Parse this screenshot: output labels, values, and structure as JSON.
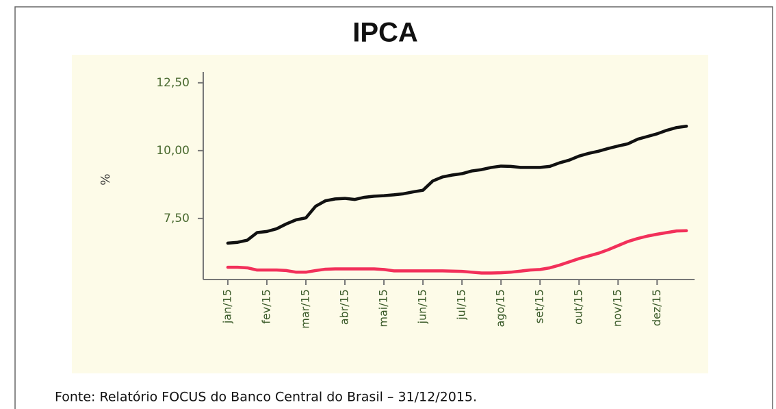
{
  "chart_data": {
    "type": "line",
    "title": "IPCA",
    "ylabel": "%",
    "source": "Fonte: Relatório FOCUS do Banco Central do Brasil – 31/12/2015.",
    "x": [
      0,
      0.25,
      0.5,
      0.75,
      1,
      1.25,
      1.5,
      1.75,
      2,
      2.25,
      2.5,
      2.75,
      3,
      3.25,
      3.5,
      3.75,
      4,
      4.25,
      4.5,
      4.75,
      5,
      5.25,
      5.5,
      5.75,
      6,
      6.25,
      6.5,
      6.75,
      7,
      7.25,
      7.5,
      7.75,
      8,
      8.25,
      8.5,
      8.75,
      9,
      9.25,
      9.5,
      9.75,
      10,
      10.25,
      10.5,
      10.75,
      11,
      11.25,
      11.5,
      11.75
    ],
    "series": [
      {
        "name": "black",
        "color": "#111111",
        "values": [
          6.59,
          6.62,
          6.7,
          6.98,
          7.02,
          7.12,
          7.3,
          7.45,
          7.52,
          7.95,
          8.15,
          8.22,
          8.24,
          8.2,
          8.28,
          8.32,
          8.34,
          8.37,
          8.41,
          8.48,
          8.54,
          8.88,
          9.03,
          9.1,
          9.15,
          9.25,
          9.3,
          9.38,
          9.43,
          9.42,
          9.38,
          9.38,
          9.38,
          9.42,
          9.55,
          9.65,
          9.8,
          9.9,
          9.98,
          10.08,
          10.17,
          10.25,
          10.42,
          10.52,
          10.62,
          10.75,
          10.85,
          10.9
        ]
      },
      {
        "name": "red",
        "color": "#f2305a",
        "values": [
          5.7,
          5.7,
          5.68,
          5.6,
          5.6,
          5.6,
          5.58,
          5.52,
          5.52,
          5.58,
          5.63,
          5.64,
          5.64,
          5.64,
          5.64,
          5.64,
          5.62,
          5.57,
          5.57,
          5.57,
          5.57,
          5.57,
          5.57,
          5.56,
          5.55,
          5.52,
          5.49,
          5.49,
          5.5,
          5.52,
          5.56,
          5.6,
          5.62,
          5.68,
          5.78,
          5.9,
          6.02,
          6.12,
          6.22,
          6.35,
          6.5,
          6.65,
          6.76,
          6.85,
          6.92,
          6.98,
          7.04,
          7.05
        ]
      }
    ],
    "xlim": [
      -0.63,
      11.96
    ],
    "xticks": [
      {
        "value": 0,
        "label": "jan/15"
      },
      {
        "value": 1,
        "label": "fev/15"
      },
      {
        "value": 2,
        "label": "mar/15"
      },
      {
        "value": 3,
        "label": "abr/15"
      },
      {
        "value": 4,
        "label": "mai/15"
      },
      {
        "value": 5,
        "label": "jun/15"
      },
      {
        "value": 6,
        "label": "jul/15"
      },
      {
        "value": 7,
        "label": "ago/15"
      },
      {
        "value": 8,
        "label": "set/15"
      },
      {
        "value": 9,
        "label": "out/15"
      },
      {
        "value": 10,
        "label": "nov/15"
      },
      {
        "value": 11,
        "label": "dez/15"
      }
    ],
    "ylim": [
      5.25,
      12.9
    ],
    "yticks": [
      {
        "value": 7.5,
        "label": "7,50"
      },
      {
        "value": 10,
        "label": "10,00"
      },
      {
        "value": 12.5,
        "label": "12,50"
      }
    ]
  }
}
